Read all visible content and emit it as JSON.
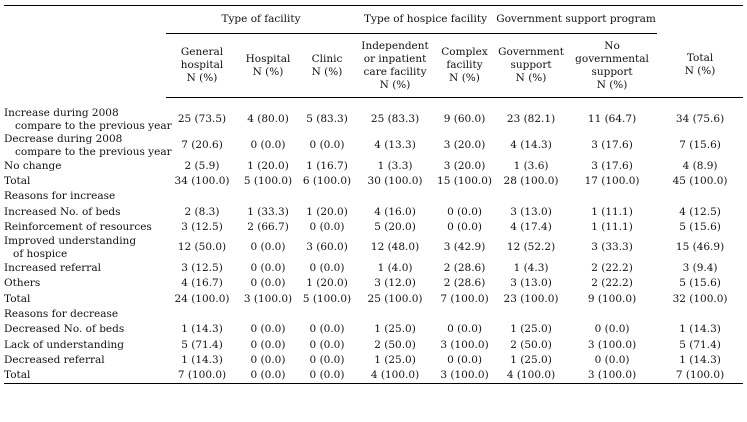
{
  "group_headers": {
    "facility": "Type of facility",
    "hospice": "Type of hospice facility",
    "support": "Government support program"
  },
  "columns": [
    [
      "General",
      "hospital",
      "N (%)"
    ],
    [
      "Hospital",
      "N (%)"
    ],
    [
      "Clinic",
      "N (%)"
    ],
    [
      "Independent",
      "or inpatient",
      "care facility",
      "N (%)"
    ],
    [
      "Complex",
      "facility",
      "N (%)"
    ],
    [
      "Government",
      "support",
      "N (%)"
    ],
    [
      "No governmental",
      "support",
      "N (%)"
    ],
    [
      "Total",
      "N (%)"
    ]
  ],
  "rows": [
    {
      "label": [
        "Increase during 2008",
        "compare to the previous year"
      ],
      "level": 0,
      "values": [
        "25 (73.5)",
        "4 (80.0)",
        "5 (83.3)",
        "25 (83.3)",
        "9 (60.0)",
        "23 (82.1)",
        "11 (64.7)",
        "34 (75.6)"
      ]
    },
    {
      "label": [
        "Decrease during 2008",
        "compare to the previous year"
      ],
      "level": 0,
      "values": [
        "7 (20.6)",
        "0 (0.0)",
        "0 (0.0)",
        "4 (13.3)",
        "3 (20.0)",
        "4 (14.3)",
        "3 (17.6)",
        "7 (15.6)"
      ]
    },
    {
      "label": [
        "No change"
      ],
      "level": 0,
      "values": [
        "2 (5.9)",
        "1 (20.0)",
        "1 (16.7)",
        "1 (3.3)",
        "3 (20.0)",
        "1 (3.6)",
        "3 (17.6)",
        "4 (8.9)"
      ]
    },
    {
      "label": [
        "Total"
      ],
      "level": 0,
      "values": [
        "34 (100.0)",
        "5 (100.0)",
        "6 (100.0)",
        "30 (100.0)",
        "15 (100.0)",
        "28 (100.0)",
        "17 (100.0)",
        "45 (100.0)"
      ]
    },
    {
      "label": [
        "Reasons for increase"
      ],
      "level": 0,
      "values": []
    },
    {
      "label": [
        "Increased No. of beds"
      ],
      "level": 1,
      "values": [
        "2 (8.3)",
        "1 (33.3)",
        "1 (20.0)",
        "4 (16.0)",
        "0 (0.0)",
        "3 (13.0)",
        "1 (11.1)",
        "4 (12.5)"
      ]
    },
    {
      "label": [
        "Reinforcement of resources"
      ],
      "level": 1,
      "values": [
        "3 (12.5)",
        "2 (66.7)",
        "0 (0.0)",
        "5 (20.0)",
        "0 (0.0)",
        "4 (17.4)",
        "1 (11.1)",
        "5 (15.6)"
      ]
    },
    {
      "label": [
        "Improved understanding",
        "of hospice"
      ],
      "level": 1,
      "values": [
        "12 (50.0)",
        "0 (0.0)",
        "3 (60.0)",
        "12 (48.0)",
        "3 (42.9)",
        "12 (52.2)",
        "3 (33.3)",
        "15 (46.9)"
      ]
    },
    {
      "label": [
        "Increased referral"
      ],
      "level": 1,
      "values": [
        "3 (12.5)",
        "0 (0.0)",
        "0 (0.0)",
        "1 (4.0)",
        "2 (28.6)",
        "1 (4.3)",
        "2 (22.2)",
        "3 (9.4)"
      ]
    },
    {
      "label": [
        "Others"
      ],
      "level": 1,
      "values": [
        "4 (16.7)",
        "0 (0.0)",
        "1 (20.0)",
        "3 (12.0)",
        "2 (28.6)",
        "3 (13.0)",
        "2 (22.2)",
        "5 (15.6)"
      ]
    },
    {
      "label": [
        "Total"
      ],
      "level": 1,
      "values": [
        "24 (100.0)",
        "3 (100.0)",
        "5 (100.0)",
        "25 (100.0)",
        "7 (100.0)",
        "23 (100.0)",
        "9 (100.0)",
        "32 (100.0)"
      ]
    },
    {
      "label": [
        "Reasons for decrease"
      ],
      "level": 0,
      "values": []
    },
    {
      "label": [
        "Decreased No. of beds"
      ],
      "level": 1,
      "values": [
        "1 (14.3)",
        "0 (0.0)",
        "0 (0.0)",
        "1 (25.0)",
        "0 (0.0)",
        "1 (25.0)",
        "0 (0.0)",
        "1 (14.3)"
      ]
    },
    {
      "label": [
        "Lack of understanding"
      ],
      "level": 1,
      "values": [
        "5 (71.4)",
        "0 (0.0)",
        "0 (0.0)",
        "2 (50.0)",
        "3 (100.0)",
        "2 (50.0)",
        "3 (100.0)",
        "5 (71.4)"
      ]
    },
    {
      "label": [
        "Decreased referral"
      ],
      "level": 1,
      "values": [
        "1 (14.3)",
        "0 (0.0)",
        "0 (0.0)",
        "1 (25.0)",
        "0 (0.0)",
        "1 (25.0)",
        "0 (0.0)",
        "1 (14.3)"
      ]
    },
    {
      "label": [
        "Total"
      ],
      "level": 1,
      "values": [
        "7 (100.0)",
        "0 (0.0)",
        "0 (0.0)",
        "4 (100.0)",
        "3 (100.0)",
        "4 (100.0)",
        "3 (100.0)",
        "7 (100.0)"
      ]
    }
  ]
}
